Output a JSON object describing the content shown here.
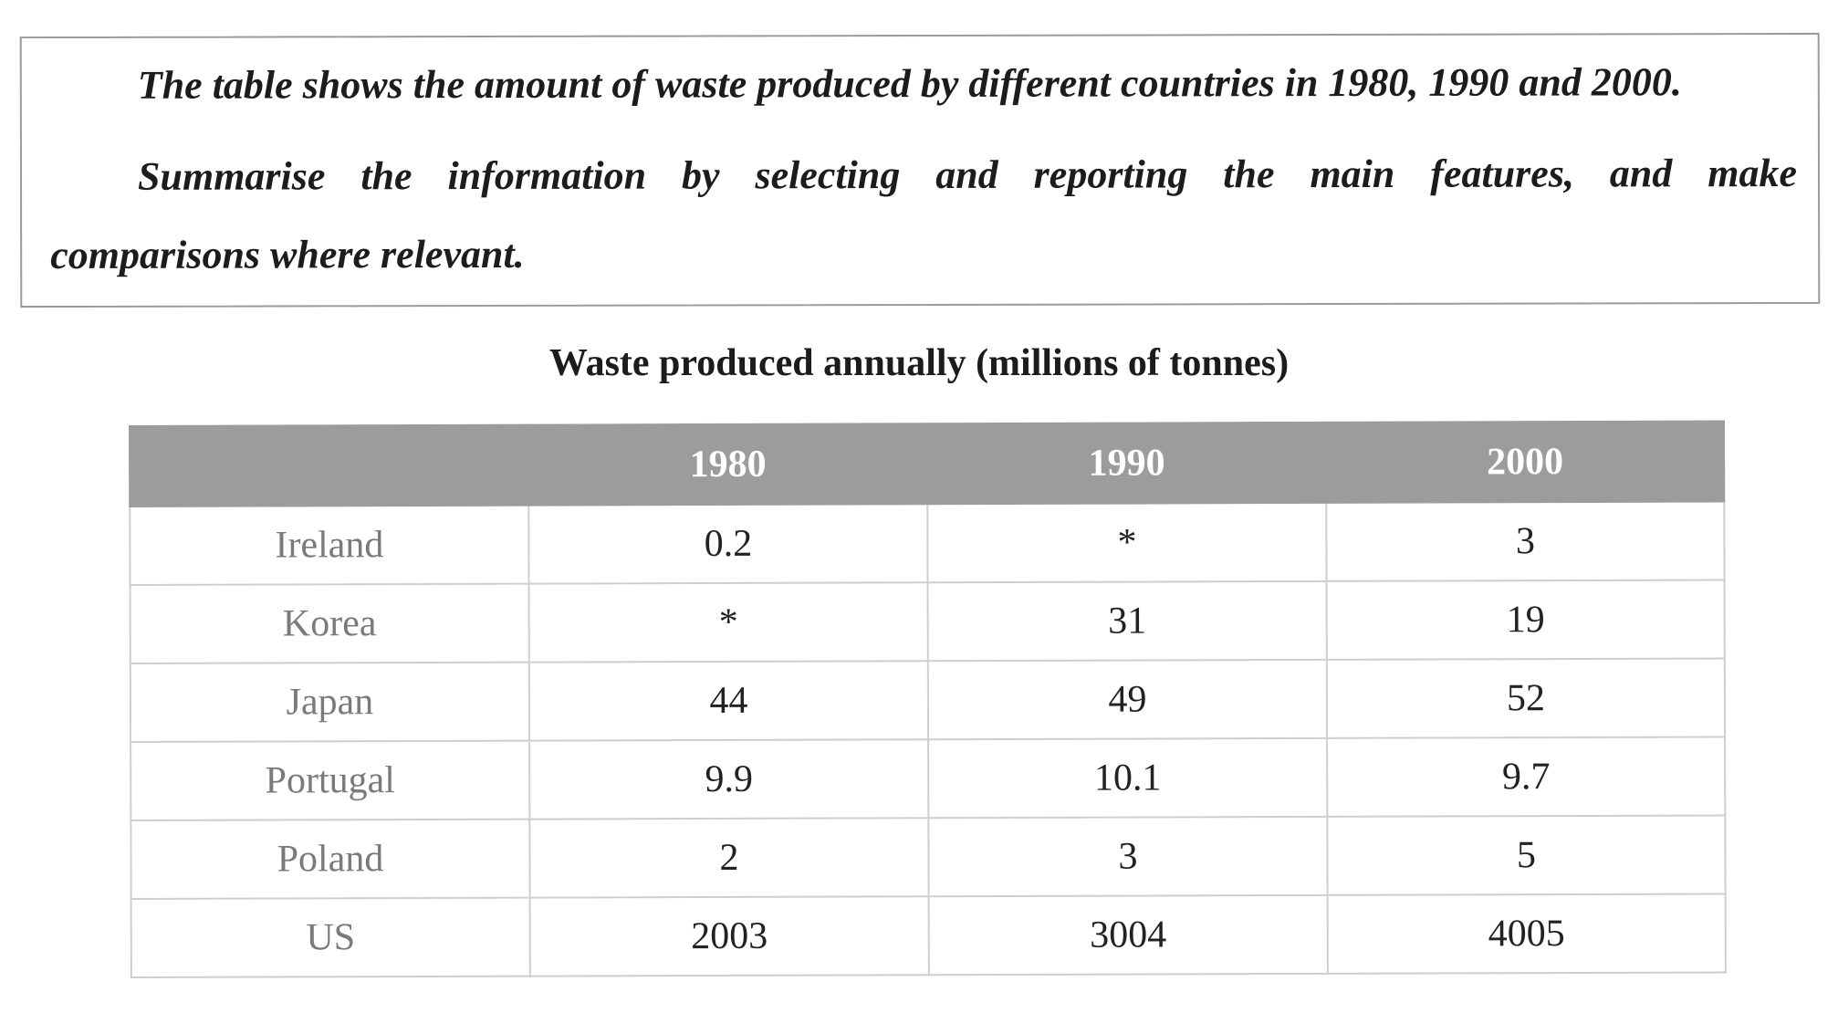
{
  "prompt": {
    "line1": "The table shows the amount of waste produced by different countries in 1980, 1990 and 2000.",
    "line2": "Summarise the information by selecting and reporting the main features, and make",
    "line3": "comparisons where relevant."
  },
  "table": {
    "title": "Waste produced annually (millions of tonnes)",
    "headers": [
      "",
      "1980",
      "1990",
      "2000"
    ],
    "rows": [
      {
        "country": "Ireland",
        "values": [
          "0.2",
          "*",
          "3"
        ]
      },
      {
        "country": "Korea",
        "values": [
          "*",
          "31",
          "19"
        ]
      },
      {
        "country": "Japan",
        "values": [
          "44",
          "49",
          "52"
        ]
      },
      {
        "country": "Portugal",
        "values": [
          "9.9",
          "10.1",
          "9.7"
        ]
      },
      {
        "country": "Poland",
        "values": [
          "2",
          "3",
          "5"
        ]
      },
      {
        "country": "US",
        "values": [
          "2003",
          "3004",
          "4005"
        ]
      }
    ]
  }
}
